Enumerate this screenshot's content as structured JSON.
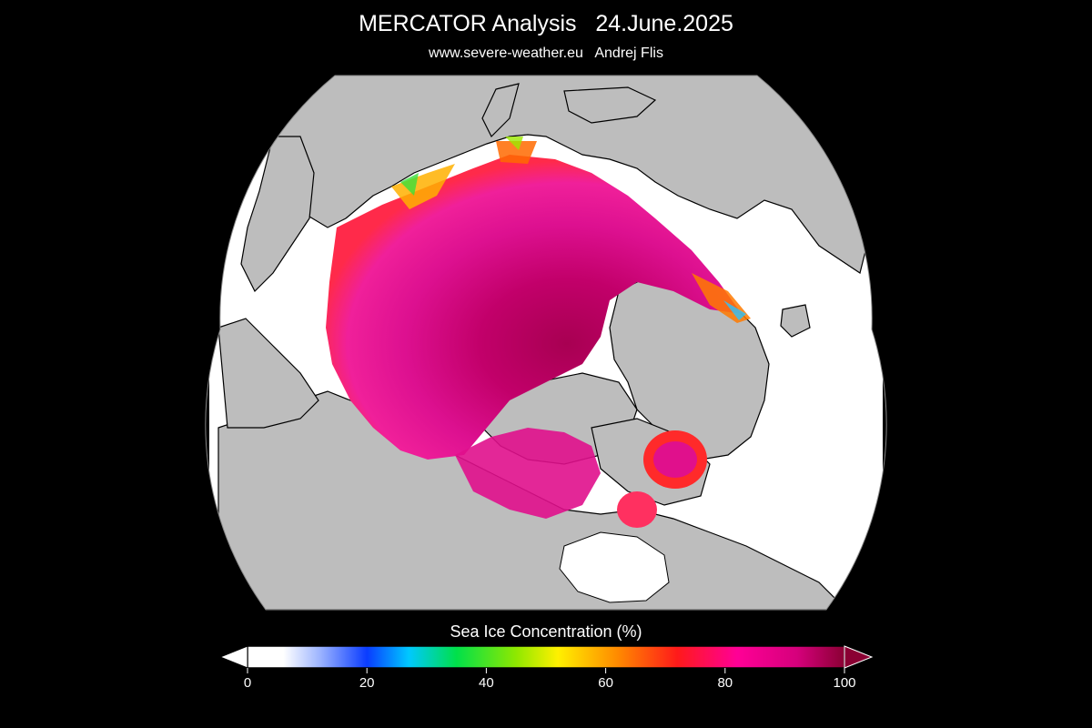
{
  "header": {
    "title": "MERCATOR Analysis   24.June.2025",
    "subtitle": "www.severe-weather.eu   Andrej Flis"
  },
  "colorbar": {
    "title": "Sea Ice Concentration (%)",
    "min": 0,
    "max": 100,
    "ticks": [
      "0",
      "20",
      "40",
      "60",
      "80",
      "100"
    ],
    "stops": [
      {
        "value": 0,
        "color": "#ffffff"
      },
      {
        "value": 6,
        "color": "#ffffff"
      },
      {
        "value": 12,
        "color": "#9fb6ff"
      },
      {
        "value": 20,
        "color": "#0a3cff"
      },
      {
        "value": 27,
        "color": "#00c8ff"
      },
      {
        "value": 35,
        "color": "#00e04a"
      },
      {
        "value": 45,
        "color": "#8fe800"
      },
      {
        "value": 52,
        "color": "#fff000"
      },
      {
        "value": 62,
        "color": "#ff8a00"
      },
      {
        "value": 72,
        "color": "#ff1a1a"
      },
      {
        "value": 82,
        "color": "#ff0096"
      },
      {
        "value": 92,
        "color": "#d6007c"
      },
      {
        "value": 100,
        "color": "#8a0033"
      }
    ]
  },
  "map_colors": {
    "background": "#000000",
    "ocean": "#ffffff",
    "land": "#bdbdbd",
    "coastline": "#000000",
    "ice_edge": "#ff1a4a",
    "ice_core": "#e0108c",
    "ice_center": "#b8005e"
  }
}
